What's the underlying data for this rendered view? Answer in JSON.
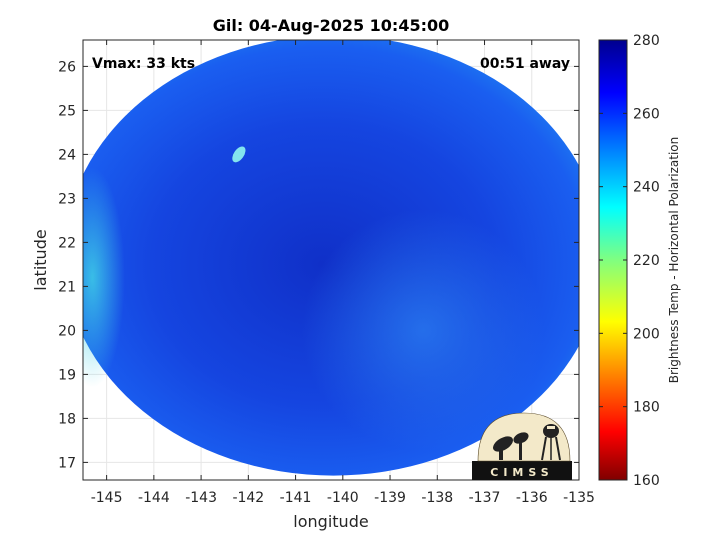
{
  "chart_data": {
    "type": "heatmap",
    "title": "Gil: 04-Aug-2025 10:45:00",
    "xlabel": "longitude",
    "ylabel": "latitude",
    "xlim": [
      -145.5,
      -135
    ],
    "ylim": [
      16.6,
      26.6
    ],
    "x_ticks": [
      -145,
      -144,
      -143,
      -142,
      -141,
      -140,
      -139,
      -138,
      -137,
      -136,
      -135
    ],
    "y_ticks": [
      17,
      18,
      19,
      20,
      21,
      22,
      23,
      24,
      25,
      26
    ],
    "grid": true,
    "annotations": {
      "top_left": "Vmax: 33 kts",
      "top_right": "00:51 away"
    },
    "swath": {
      "shape": "circular",
      "center_lon": -140.2,
      "center_lat": 21.7,
      "radius_lon": 5.7,
      "radius_lat": 5.0
    },
    "colorbar": {
      "label": "Brightness Temp - Horizontal Polarization",
      "min": 160,
      "max": 280,
      "ticks": [
        160,
        180,
        200,
        220,
        240,
        260,
        280
      ],
      "colormap": "jet",
      "colors": [
        "#800000",
        "#ff0000",
        "#ff8000",
        "#ffff00",
        "#80ff80",
        "#00ffff",
        "#0080ff",
        "#0000ff",
        "#00008f"
      ]
    }
  },
  "logo": {
    "text": "CIMSS"
  }
}
